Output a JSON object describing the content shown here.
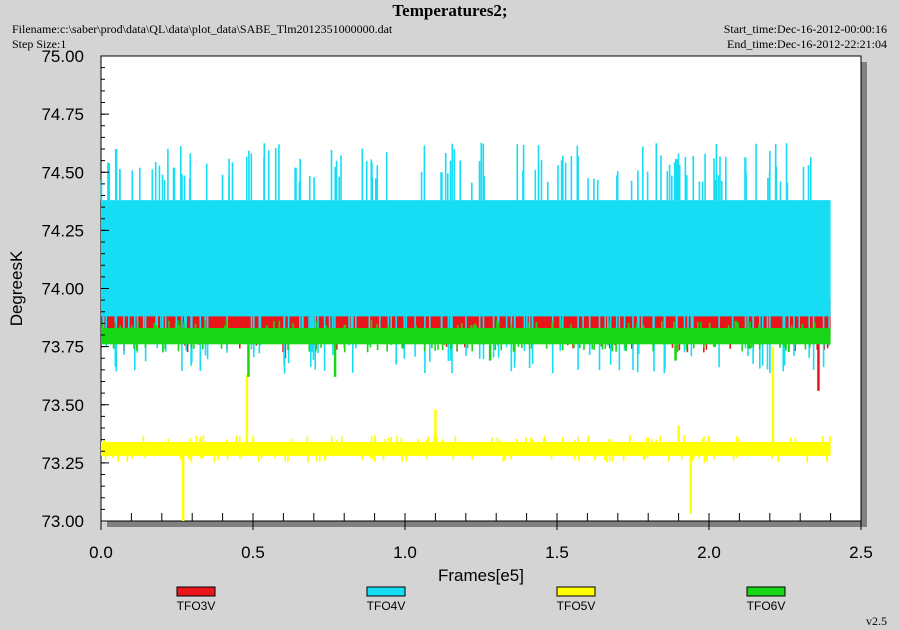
{
  "header": {
    "title": "Temperatures2;",
    "filename": "Filename:c:\\saber\\prod\\data\\QL\\data\\plot_data\\SABE_Tlm2012351000000.dat",
    "step_size": "Step Size:1",
    "start_time": "Start_time:Dec-16-2012-00:00:16",
    "end_time": "End_time:Dec-16-2012-22:21:04"
  },
  "footer": {
    "version": "v2.5"
  },
  "colors": {
    "background": "#d4d4d4",
    "plot_area": "#ffffff",
    "TFO3V": "#e8161b",
    "TFO4V": "#16dcf4",
    "TFO5V": "#ffff00",
    "TFO6V": "#16d616"
  },
  "chart_data": {
    "type": "line",
    "title": "Temperatures2;",
    "xlabel": "Frames[e5]",
    "ylabel": "DegreesK",
    "xlim": [
      0.0,
      2.5
    ],
    "ylim": [
      73.0,
      75.0
    ],
    "x_ticks": [
      "0.0",
      "0.5",
      "1.0",
      "1.5",
      "2.0",
      "2.5"
    ],
    "y_ticks": [
      "73.00",
      "73.25",
      "73.50",
      "73.75",
      "74.00",
      "74.25",
      "74.50",
      "74.75",
      "75.00"
    ],
    "x_data_max": 2.4,
    "grid": false,
    "legend_position": "bottom",
    "series": [
      {
        "name": "TFO3V",
        "color": "#e8161b",
        "band": [
          73.8,
          73.95
        ],
        "outliers": [
          [
            0.605,
            73.7
          ],
          [
            2.36,
            73.56
          ]
        ]
      },
      {
        "name": "TFO4V",
        "color": "#16dcf4",
        "band": [
          73.88,
          74.38
        ],
        "outliers": [
          [
            0.05,
            74.6
          ],
          [
            0.24,
            74.52
          ],
          [
            0.64,
            74.52
          ],
          [
            1.12,
            74.5
          ]
        ]
      },
      {
        "name": "TFO5V",
        "color": "#ffff00",
        "band": [
          73.28,
          73.34
        ],
        "outliers": [
          [
            0.27,
            73.0
          ],
          [
            0.48,
            73.63
          ],
          [
            1.1,
            73.48
          ],
          [
            1.94,
            73.03
          ],
          [
            2.21,
            73.75
          ],
          [
            1.9,
            73.41
          ]
        ]
      },
      {
        "name": "TFO6V",
        "color": "#16d616",
        "band": [
          73.76,
          73.83
        ],
        "outliers": [
          [
            0.485,
            73.62
          ],
          [
            0.77,
            73.62
          ],
          [
            1.28,
            73.69
          ],
          [
            1.89,
            73.69
          ]
        ]
      }
    ]
  }
}
